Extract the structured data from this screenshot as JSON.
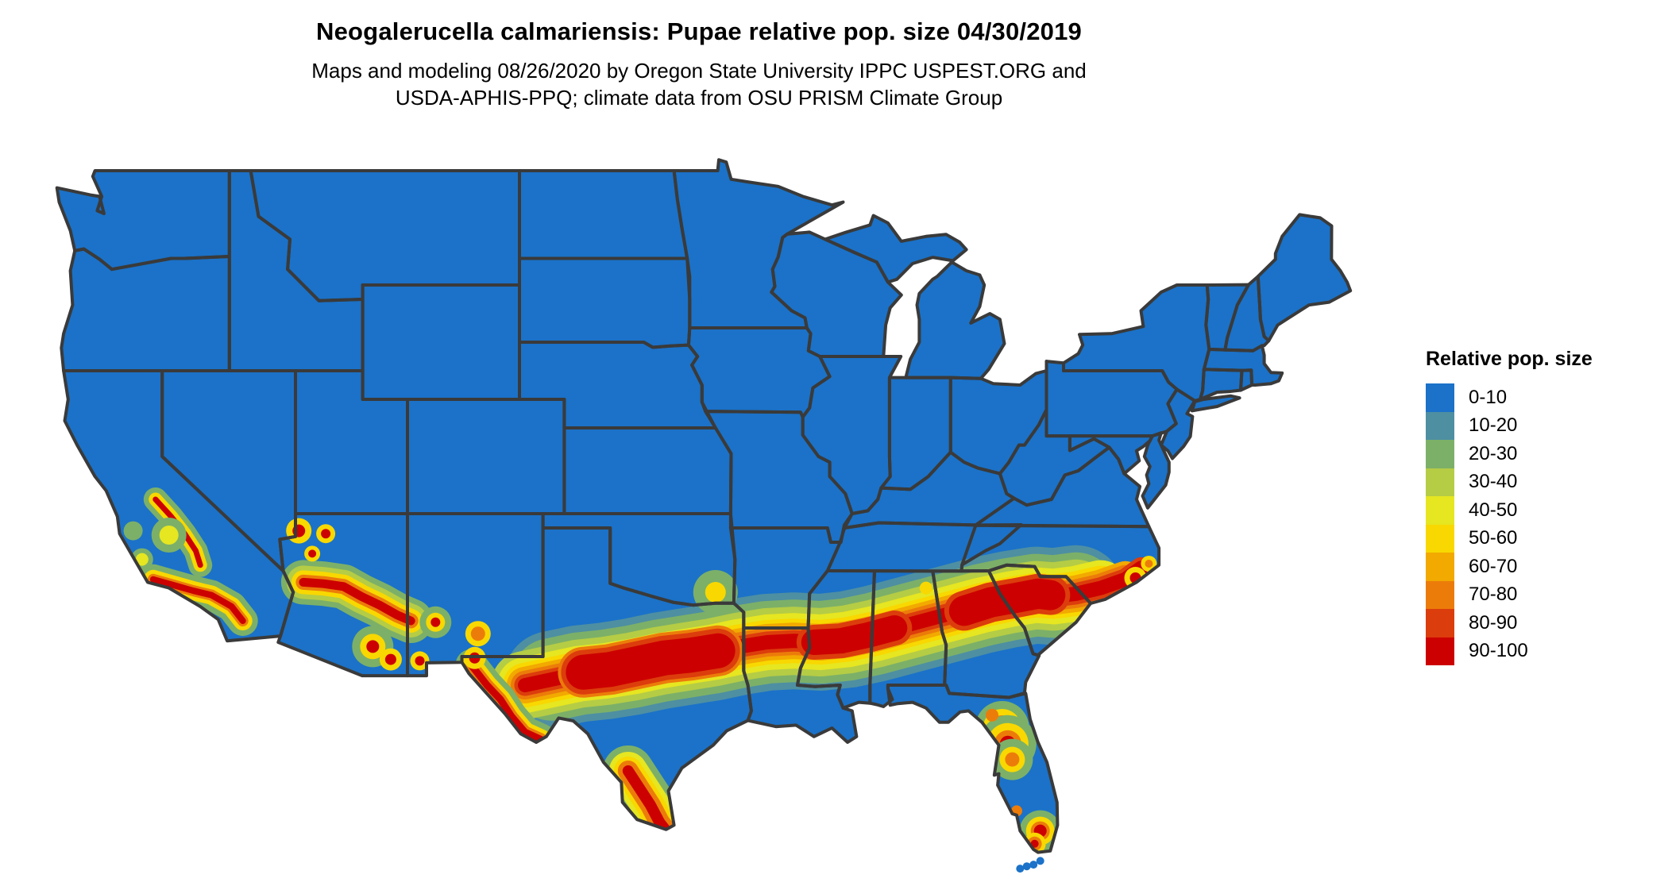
{
  "header": {
    "title": "Neogalerucella calmariensis: Pupae relative pop. size 04/30/2019",
    "subtitle_line1": "Maps and modeling 08/26/2020 by Oregon State University IPPC USPEST.ORG and",
    "subtitle_line2": "USDA-APHIS-PPQ; climate data from OSU PRISM Climate Group"
  },
  "legend": {
    "title": "Relative pop. size",
    "items": [
      {
        "label": "0-10",
        "color": "#1B72C8"
      },
      {
        "label": "10-20",
        "color": "#4E8FA2"
      },
      {
        "label": "20-30",
        "color": "#7CB068"
      },
      {
        "label": "30-40",
        "color": "#B5CC45"
      },
      {
        "label": "40-50",
        "color": "#E6E621"
      },
      {
        "label": "50-60",
        "color": "#F8D800"
      },
      {
        "label": "60-70",
        "color": "#F2A900"
      },
      {
        "label": "70-80",
        "color": "#EC7C0A"
      },
      {
        "label": "80-90",
        "color": "#DC3D0C"
      },
      {
        "label": "90-100",
        "color": "#CC0000"
      }
    ]
  },
  "map": {
    "background": "#FFFFFF",
    "base_fill_class": "0-10",
    "border_color": "#3A3A3A",
    "hotspot_regions": [
      "Band from west Texas across central Texas, northern Louisiana, central Mississippi, Alabama, Georgia and South Carolina to coastal North Carolina",
      "South Texas along the Rio Grande",
      "West Texas mountains",
      "Central Arizona mountain arc and southeast Arizona / New Mexico sky islands",
      "Southern California ranges and Sierra foothills",
      "North-central Florida and south Florida"
    ]
  }
}
